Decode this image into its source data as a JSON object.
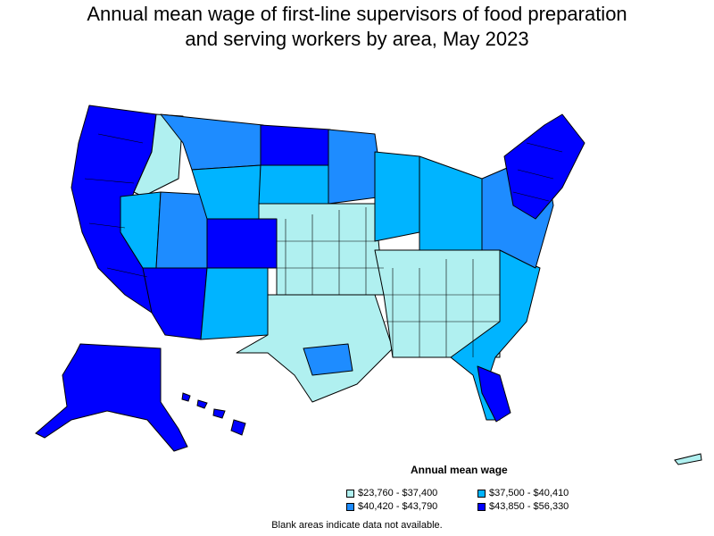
{
  "title": {
    "line1": "Annual mean wage of first-line supervisors of food preparation",
    "line2": "and serving workers by area, May 2023"
  },
  "legend": {
    "title": "Annual mean wage",
    "items": [
      {
        "label": "$23,760 - $37,400",
        "color": "#b0f0f0"
      },
      {
        "label": "$37,500 - $40,410",
        "color": "#00b4ff"
      },
      {
        "label": "$40,420 - $43,790",
        "color": "#1e8cff"
      },
      {
        "label": "$43,850 - $56,330",
        "color": "#0000ff"
      }
    ]
  },
  "note": "Blank areas indicate data not available.",
  "colors": {
    "border": "#000000",
    "background": "#ffffff"
  }
}
